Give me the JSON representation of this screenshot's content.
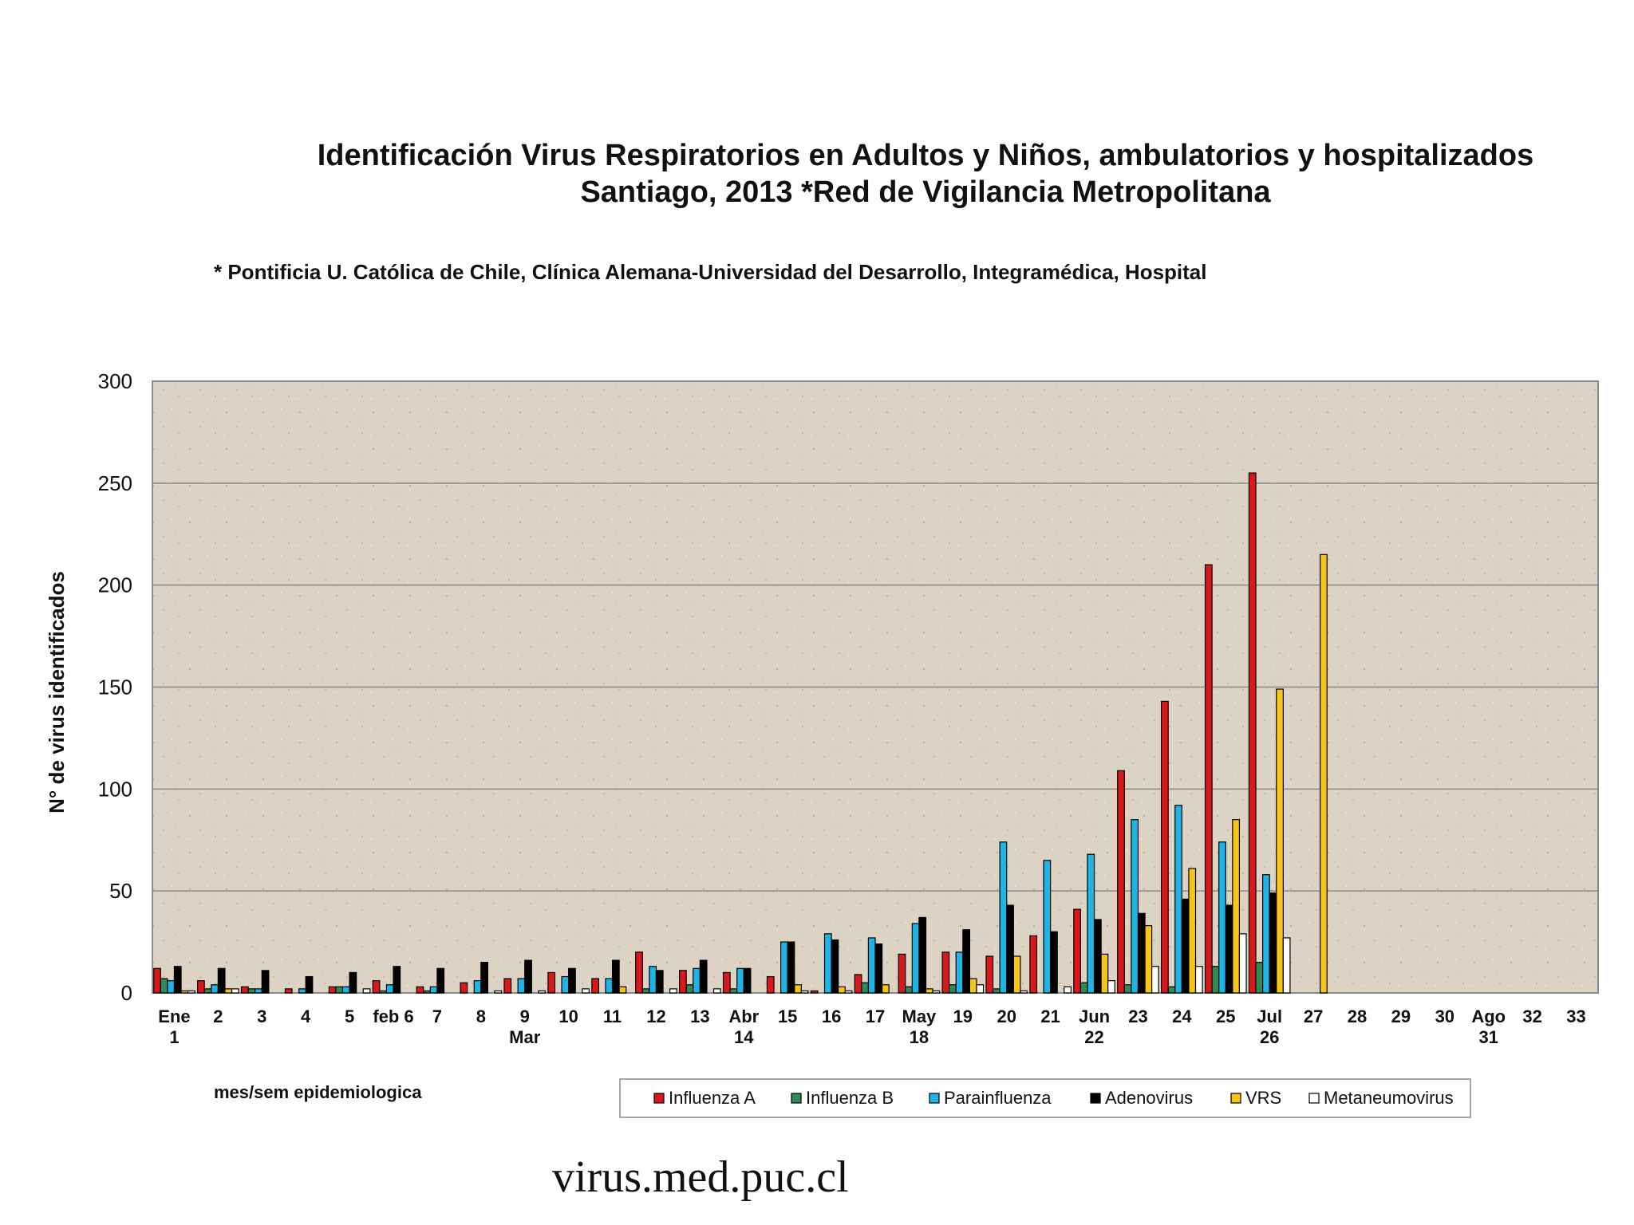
{
  "chart_data": {
    "type": "bar",
    "title": "Identificación Virus Respiratorios en Adultos y Niños, ambulatorios y hospitalizados",
    "title2": "Santiago, 2013  *Red de Vigilancia Metropolitana",
    "subtitle": "* Pontificia U. Católica de Chile, Clínica Alemana-Universidad del Desarrollo, Integramédica, Hospital",
    "ylabel": "N° de virus identificados",
    "xlabel": "mes/sem  epidemiologica",
    "ylim": [
      0,
      300
    ],
    "yticks": [
      0,
      50,
      100,
      150,
      200,
      250,
      300
    ],
    "legend_position": "bottom",
    "categories": [
      [
        "Ene",
        "1"
      ],
      [
        "2"
      ],
      [
        "3"
      ],
      [
        "4"
      ],
      [
        "5"
      ],
      [
        "feb 6"
      ],
      [
        "7"
      ],
      [
        "8"
      ],
      [
        "9",
        "Mar"
      ],
      [
        "10"
      ],
      [
        "11"
      ],
      [
        "12"
      ],
      [
        "13"
      ],
      [
        "Abr",
        "14"
      ],
      [
        "15"
      ],
      [
        "16"
      ],
      [
        "17"
      ],
      [
        "May",
        "18"
      ],
      [
        "19"
      ],
      [
        "20"
      ],
      [
        "21"
      ],
      [
        "Jun",
        "22"
      ],
      [
        "23"
      ],
      [
        "24"
      ],
      [
        "25"
      ],
      [
        "Jul",
        "26"
      ],
      [
        "27"
      ],
      [
        "28"
      ],
      [
        "29"
      ],
      [
        "30"
      ],
      [
        "Ago",
        "31"
      ],
      [
        "32"
      ],
      [
        "33"
      ]
    ],
    "series": [
      {
        "name": "Influenza A",
        "color": "#d7191c",
        "values": [
          12,
          6,
          3,
          2,
          3,
          6,
          3,
          5,
          7,
          10,
          7,
          20,
          11,
          10,
          8,
          1,
          9,
          19,
          20,
          18,
          28,
          41,
          109,
          143,
          210,
          255,
          0,
          0,
          0,
          0,
          0,
          0,
          0
        ]
      },
      {
        "name": "Influenza B",
        "color": "#2e8b57",
        "values": [
          7,
          2,
          2,
          0,
          3,
          1,
          1,
          0,
          0,
          0,
          0,
          2,
          4,
          2,
          0,
          0,
          5,
          3,
          4,
          2,
          0,
          5,
          4,
          3,
          13,
          15,
          0,
          0,
          0,
          0,
          0,
          0,
          0
        ]
      },
      {
        "name": "Parainfluenza",
        "color": "#1fb4e6",
        "values": [
          6,
          4,
          2,
          2,
          3,
          4,
          3,
          6,
          7,
          8,
          7,
          13,
          12,
          12,
          25,
          29,
          27,
          34,
          20,
          74,
          65,
          68,
          85,
          92,
          74,
          58,
          0,
          0,
          0,
          0,
          0,
          0,
          0
        ]
      },
      {
        "name": "Adenovirus",
        "color": "#000000",
        "values": [
          13,
          12,
          11,
          8,
          10,
          13,
          12,
          15,
          16,
          12,
          16,
          11,
          16,
          12,
          25,
          26,
          24,
          37,
          31,
          43,
          30,
          36,
          39,
          46,
          43,
          49,
          0,
          0,
          0,
          0,
          0,
          0,
          0
        ]
      },
      {
        "name": "VRS",
        "color": "#f5c518",
        "values": [
          1,
          2,
          0,
          0,
          0,
          0,
          0,
          0,
          0,
          0,
          3,
          0,
          0,
          0,
          4,
          3,
          4,
          2,
          7,
          18,
          0,
          19,
          33,
          61,
          85,
          149,
          215,
          0,
          0,
          0,
          0,
          0,
          0
        ]
      },
      {
        "name": "Metaneumovirus",
        "color": "#ffffff",
        "values": [
          1,
          2,
          0,
          0,
          2,
          0,
          0,
          1,
          1,
          2,
          0,
          2,
          2,
          0,
          1,
          1,
          0,
          1,
          4,
          1,
          3,
          6,
          13,
          13,
          29,
          27,
          0,
          0,
          0,
          0,
          0,
          0,
          0
        ]
      }
    ]
  },
  "footer": "virus.med.puc.cl"
}
